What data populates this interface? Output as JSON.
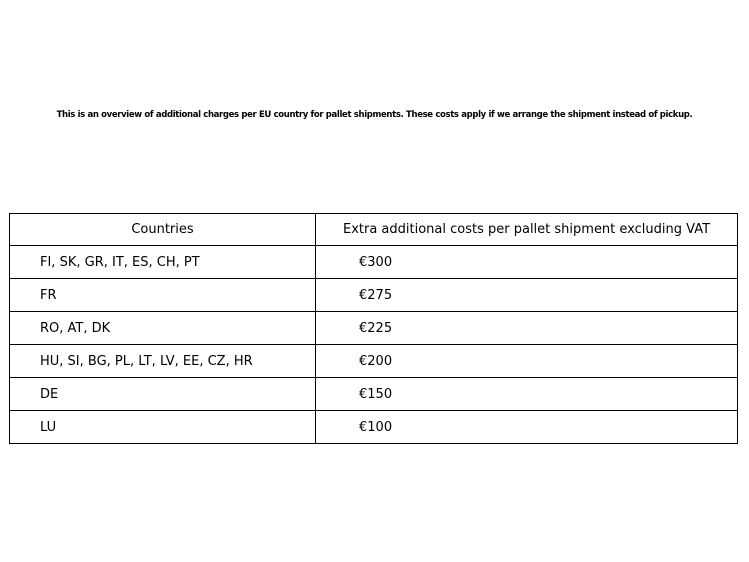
{
  "intro": {
    "text": "This is an overview of additional charges per EU country for pallet shipments. These costs apply if we arrange the shipment instead of pickup."
  },
  "table": {
    "headers": {
      "countries": "Countries",
      "costs": "Extra additional costs per pallet shipment excluding VAT"
    },
    "rows": [
      {
        "countries": "FI, SK, GR, IT, ES, CH, PT",
        "cost": "€300"
      },
      {
        "countries": "FR",
        "cost": "€275"
      },
      {
        "countries": "RO, AT, DK",
        "cost": "€225"
      },
      {
        "countries": "HU, SI, BG, PL, LT, LV, EE, CZ, HR",
        "cost": "€200"
      },
      {
        "countries": "DE",
        "cost": "€150"
      },
      {
        "countries": "LU",
        "cost": "€100"
      }
    ]
  },
  "colors": {
    "background": "#ffffff",
    "text": "#000000",
    "border": "#000000"
  }
}
